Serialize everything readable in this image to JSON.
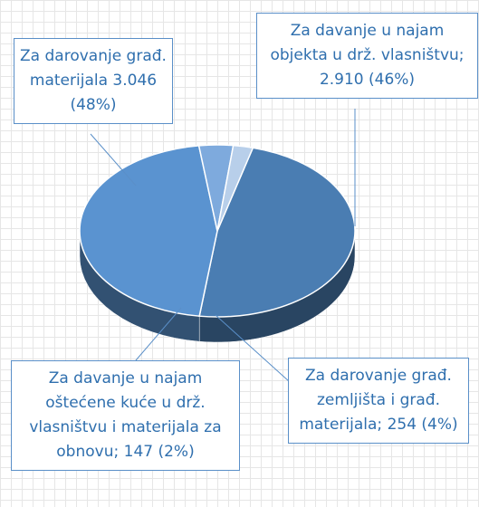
{
  "chart_data": {
    "type": "pie",
    "categories": [
      "Za darovanje građ. materijala",
      "Za davanje u najam objekta u drž. vlasništvu;",
      "Za darovanje građ. zemljišta i građ. materijala;",
      "Za davanje u najam oštećene kuće u drž. vlasništvu i materijala za obnovu;"
    ],
    "values": [
      3046,
      2910,
      254,
      147
    ],
    "value_labels": [
      "3.046 (48%)",
      "2.910 (46%)",
      "254 (4%)",
      "147 (2%)"
    ],
    "colors": [
      "#4a7db2",
      "#5a93d0",
      "#7eaadd",
      "#b8cfea"
    ]
  }
}
